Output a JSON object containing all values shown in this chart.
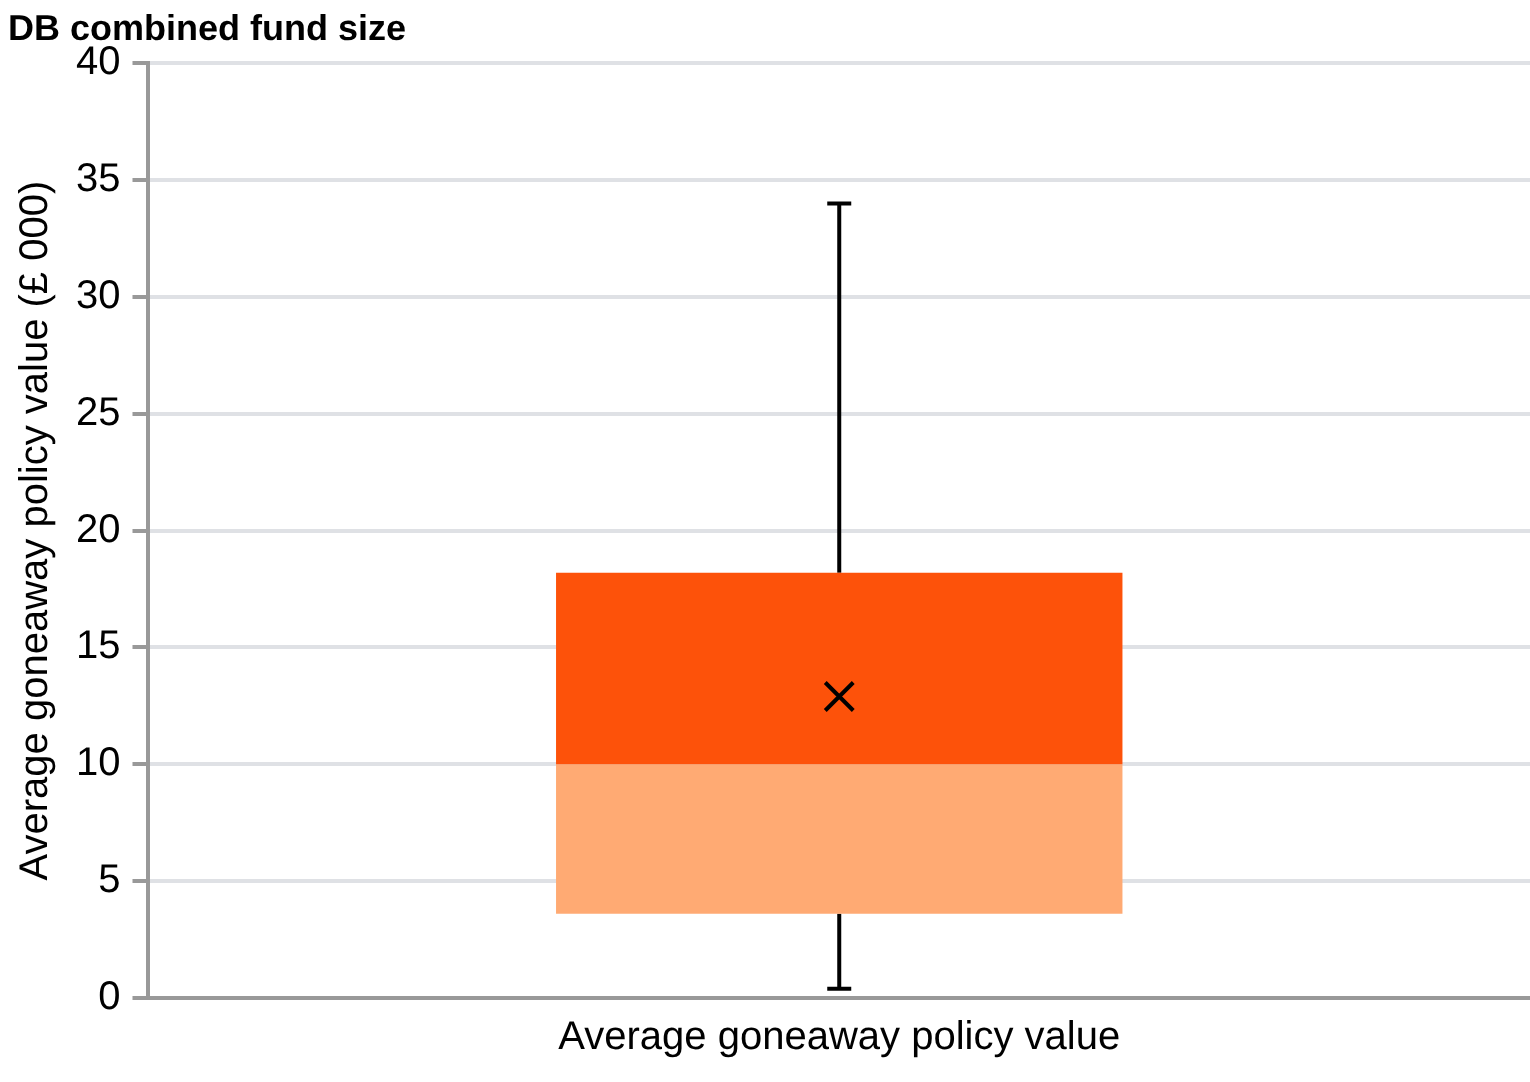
{
  "chart_data": {
    "type": "box",
    "title": "DB combined fund size",
    "ylabel": "Average goneaway policy value (£ 000)",
    "categories": [
      "Average goneaway policy value"
    ],
    "boxes": [
      {
        "low": 0.4,
        "q1": 3.6,
        "median": 10,
        "q3": 18.2,
        "high": 34,
        "mean": 12.9
      }
    ],
    "colors": [
      [
        "#ffaa73",
        "#fd520a"
      ]
    ],
    "ylim": [
      0,
      40
    ],
    "yticks": [
      0,
      5,
      10,
      15,
      20,
      25,
      30,
      35,
      40
    ],
    "grid": "y",
    "legend": false,
    "marker": "cross"
  }
}
